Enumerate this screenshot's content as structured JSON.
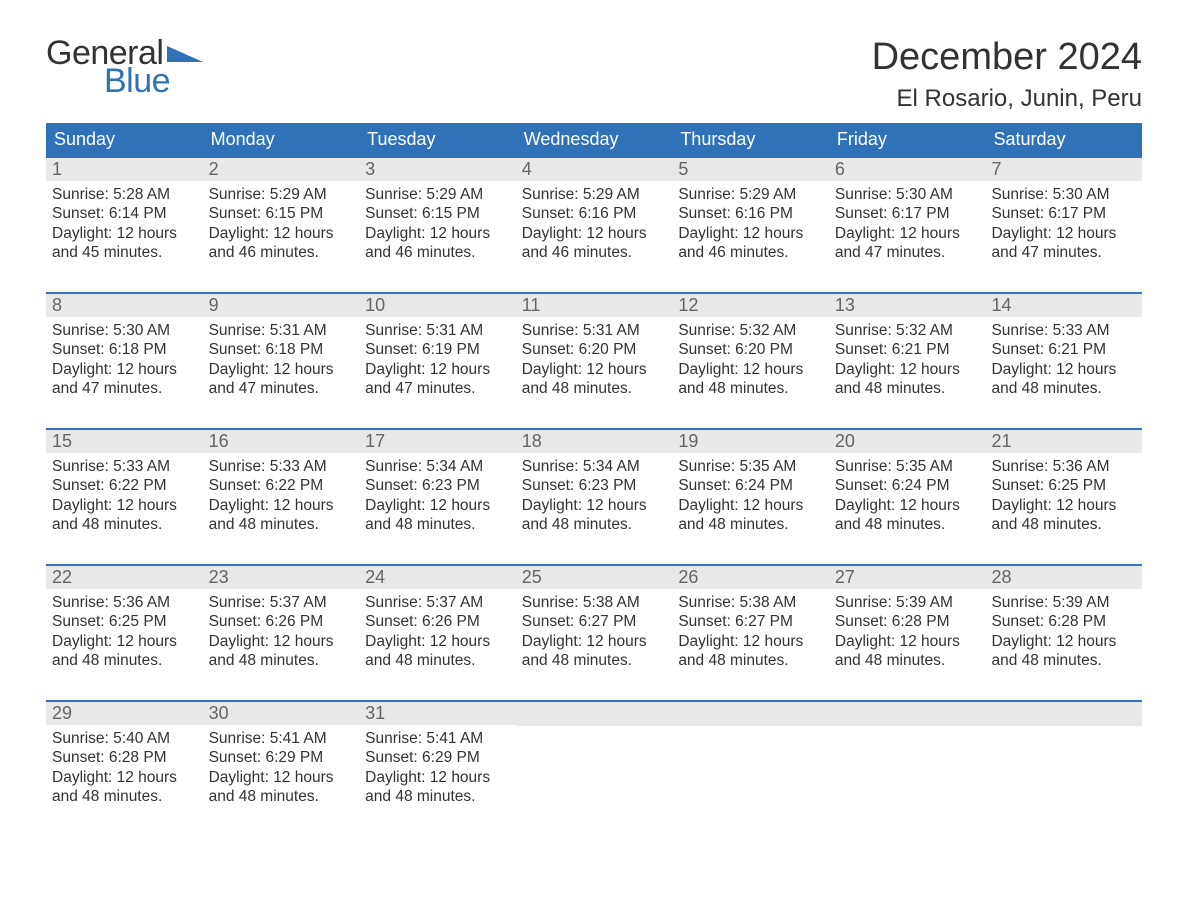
{
  "logo": {
    "word1": "General",
    "word2": "Blue",
    "word1_color": "#333333",
    "word2_color": "#2f72b8",
    "triangle_color": "#2f72b8",
    "fontsize": 34
  },
  "header": {
    "month_title": "December 2024",
    "location": "El Rosario, Junin, Peru",
    "title_fontsize": 38,
    "location_fontsize": 24,
    "text_color": "#333333"
  },
  "calendar": {
    "type": "table",
    "header_bg": "#2f72b8",
    "header_text_color": "#ffffff",
    "daynum_bg": "#e8e8e8",
    "daynum_text_color": "#666666",
    "body_text_color": "#333333",
    "week_border_color": "#2f72b8",
    "body_fontsize": 15.5,
    "weekday_fontsize": 18,
    "weekdays": [
      "Sunday",
      "Monday",
      "Tuesday",
      "Wednesday",
      "Thursday",
      "Friday",
      "Saturday"
    ],
    "weeks": [
      [
        {
          "n": "1",
          "sr": "Sunrise: 5:28 AM",
          "ss": "Sunset: 6:14 PM",
          "d1": "Daylight: 12 hours",
          "d2": "and 45 minutes."
        },
        {
          "n": "2",
          "sr": "Sunrise: 5:29 AM",
          "ss": "Sunset: 6:15 PM",
          "d1": "Daylight: 12 hours",
          "d2": "and 46 minutes."
        },
        {
          "n": "3",
          "sr": "Sunrise: 5:29 AM",
          "ss": "Sunset: 6:15 PM",
          "d1": "Daylight: 12 hours",
          "d2": "and 46 minutes."
        },
        {
          "n": "4",
          "sr": "Sunrise: 5:29 AM",
          "ss": "Sunset: 6:16 PM",
          "d1": "Daylight: 12 hours",
          "d2": "and 46 minutes."
        },
        {
          "n": "5",
          "sr": "Sunrise: 5:29 AM",
          "ss": "Sunset: 6:16 PM",
          "d1": "Daylight: 12 hours",
          "d2": "and 46 minutes."
        },
        {
          "n": "6",
          "sr": "Sunrise: 5:30 AM",
          "ss": "Sunset: 6:17 PM",
          "d1": "Daylight: 12 hours",
          "d2": "and 47 minutes."
        },
        {
          "n": "7",
          "sr": "Sunrise: 5:30 AM",
          "ss": "Sunset: 6:17 PM",
          "d1": "Daylight: 12 hours",
          "d2": "and 47 minutes."
        }
      ],
      [
        {
          "n": "8",
          "sr": "Sunrise: 5:30 AM",
          "ss": "Sunset: 6:18 PM",
          "d1": "Daylight: 12 hours",
          "d2": "and 47 minutes."
        },
        {
          "n": "9",
          "sr": "Sunrise: 5:31 AM",
          "ss": "Sunset: 6:18 PM",
          "d1": "Daylight: 12 hours",
          "d2": "and 47 minutes."
        },
        {
          "n": "10",
          "sr": "Sunrise: 5:31 AM",
          "ss": "Sunset: 6:19 PM",
          "d1": "Daylight: 12 hours",
          "d2": "and 47 minutes."
        },
        {
          "n": "11",
          "sr": "Sunrise: 5:31 AM",
          "ss": "Sunset: 6:20 PM",
          "d1": "Daylight: 12 hours",
          "d2": "and 48 minutes."
        },
        {
          "n": "12",
          "sr": "Sunrise: 5:32 AM",
          "ss": "Sunset: 6:20 PM",
          "d1": "Daylight: 12 hours",
          "d2": "and 48 minutes."
        },
        {
          "n": "13",
          "sr": "Sunrise: 5:32 AM",
          "ss": "Sunset: 6:21 PM",
          "d1": "Daylight: 12 hours",
          "d2": "and 48 minutes."
        },
        {
          "n": "14",
          "sr": "Sunrise: 5:33 AM",
          "ss": "Sunset: 6:21 PM",
          "d1": "Daylight: 12 hours",
          "d2": "and 48 minutes."
        }
      ],
      [
        {
          "n": "15",
          "sr": "Sunrise: 5:33 AM",
          "ss": "Sunset: 6:22 PM",
          "d1": "Daylight: 12 hours",
          "d2": "and 48 minutes."
        },
        {
          "n": "16",
          "sr": "Sunrise: 5:33 AM",
          "ss": "Sunset: 6:22 PM",
          "d1": "Daylight: 12 hours",
          "d2": "and 48 minutes."
        },
        {
          "n": "17",
          "sr": "Sunrise: 5:34 AM",
          "ss": "Sunset: 6:23 PM",
          "d1": "Daylight: 12 hours",
          "d2": "and 48 minutes."
        },
        {
          "n": "18",
          "sr": "Sunrise: 5:34 AM",
          "ss": "Sunset: 6:23 PM",
          "d1": "Daylight: 12 hours",
          "d2": "and 48 minutes."
        },
        {
          "n": "19",
          "sr": "Sunrise: 5:35 AM",
          "ss": "Sunset: 6:24 PM",
          "d1": "Daylight: 12 hours",
          "d2": "and 48 minutes."
        },
        {
          "n": "20",
          "sr": "Sunrise: 5:35 AM",
          "ss": "Sunset: 6:24 PM",
          "d1": "Daylight: 12 hours",
          "d2": "and 48 minutes."
        },
        {
          "n": "21",
          "sr": "Sunrise: 5:36 AM",
          "ss": "Sunset: 6:25 PM",
          "d1": "Daylight: 12 hours",
          "d2": "and 48 minutes."
        }
      ],
      [
        {
          "n": "22",
          "sr": "Sunrise: 5:36 AM",
          "ss": "Sunset: 6:25 PM",
          "d1": "Daylight: 12 hours",
          "d2": "and 48 minutes."
        },
        {
          "n": "23",
          "sr": "Sunrise: 5:37 AM",
          "ss": "Sunset: 6:26 PM",
          "d1": "Daylight: 12 hours",
          "d2": "and 48 minutes."
        },
        {
          "n": "24",
          "sr": "Sunrise: 5:37 AM",
          "ss": "Sunset: 6:26 PM",
          "d1": "Daylight: 12 hours",
          "d2": "and 48 minutes."
        },
        {
          "n": "25",
          "sr": "Sunrise: 5:38 AM",
          "ss": "Sunset: 6:27 PM",
          "d1": "Daylight: 12 hours",
          "d2": "and 48 minutes."
        },
        {
          "n": "26",
          "sr": "Sunrise: 5:38 AM",
          "ss": "Sunset: 6:27 PM",
          "d1": "Daylight: 12 hours",
          "d2": "and 48 minutes."
        },
        {
          "n": "27",
          "sr": "Sunrise: 5:39 AM",
          "ss": "Sunset: 6:28 PM",
          "d1": "Daylight: 12 hours",
          "d2": "and 48 minutes."
        },
        {
          "n": "28",
          "sr": "Sunrise: 5:39 AM",
          "ss": "Sunset: 6:28 PM",
          "d1": "Daylight: 12 hours",
          "d2": "and 48 minutes."
        }
      ],
      [
        {
          "n": "29",
          "sr": "Sunrise: 5:40 AM",
          "ss": "Sunset: 6:28 PM",
          "d1": "Daylight: 12 hours",
          "d2": "and 48 minutes."
        },
        {
          "n": "30",
          "sr": "Sunrise: 5:41 AM",
          "ss": "Sunset: 6:29 PM",
          "d1": "Daylight: 12 hours",
          "d2": "and 48 minutes."
        },
        {
          "n": "31",
          "sr": "Sunrise: 5:41 AM",
          "ss": "Sunset: 6:29 PM",
          "d1": "Daylight: 12 hours",
          "d2": "and 48 minutes."
        },
        {
          "empty": true
        },
        {
          "empty": true
        },
        {
          "empty": true
        },
        {
          "empty": true
        }
      ]
    ]
  }
}
